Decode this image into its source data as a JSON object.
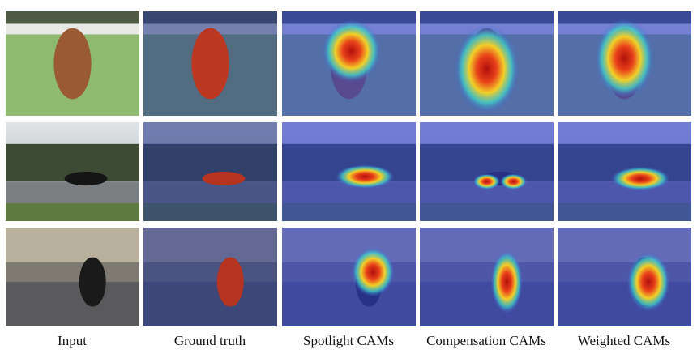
{
  "figure": {
    "column_labels": [
      "Input",
      "Ground truth",
      "Spotlight CAMs",
      "Compensation CAMs",
      "Weighted CAMs"
    ]
  }
}
